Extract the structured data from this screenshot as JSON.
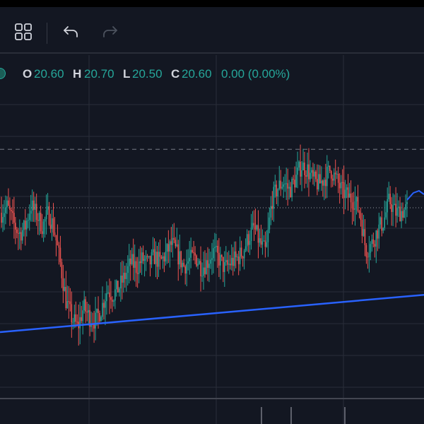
{
  "toolbar": {
    "layout_icon": "grid-layout-icon",
    "undo_icon": "undo-icon",
    "redo_icon": "redo-icon"
  },
  "legend": {
    "open_label": "O",
    "open_value": "20.60",
    "high_label": "H",
    "high_value": "20.70",
    "low_label": "L",
    "low_value": "20.50",
    "close_label": "C",
    "close_value": "20.60",
    "change": "0.00 (0.00%)"
  },
  "colors": {
    "background": "#131722",
    "grid": "#2a2e39",
    "up": "#26a69a",
    "down": "#ef5350",
    "trendline": "#2962ff",
    "text": "#d1d4dc"
  },
  "chart_data": {
    "type": "candlestick",
    "grid": true,
    "price_path": [
      34.6,
      35.1,
      33.8,
      32.9,
      33.4,
      35.2,
      34.4,
      33.5,
      34.6,
      33.2,
      30.6,
      27.5,
      26.1,
      25.4,
      27.0,
      26.2,
      25.9,
      26.9,
      28.4,
      28.0,
      28.6,
      29.5,
      30.6,
      30.2,
      30.9,
      30.4,
      31.1,
      30.6,
      31.3,
      32.1,
      31.2,
      30.3,
      30.8,
      31.1,
      30.2,
      30.6,
      31.5,
      30.9,
      30.1,
      30.6,
      30.9,
      31.4,
      32.6,
      33.4,
      32.1,
      31.4,
      35.6,
      36.6,
      37.1,
      36.4,
      37.3,
      38.4,
      38.1,
      37.2,
      36.9,
      37.4,
      38.1,
      37.2,
      36.3,
      35.9,
      35.6,
      34.6,
      31.6,
      32.1,
      33.2,
      33.9,
      35.6,
      34.6,
      34.7,
      34.9
    ],
    "trendline": {
      "start": 25.0,
      "end": 28.0
    },
    "dashed_level": 39.7,
    "dotted_level": 35.0,
    "volume_bars_visible": 3
  }
}
